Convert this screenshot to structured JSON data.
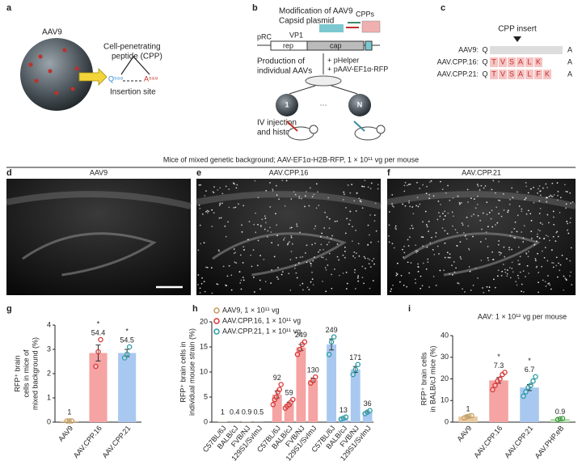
{
  "figure": {
    "panel_a": {
      "label": "a",
      "virus": "AAV9",
      "cpp": [
        "Cell-penetrating",
        "peptide (CPP)"
      ],
      "q": "Q⁵⁸⁸",
      "a": "A⁵⁸⁹",
      "site": "Insertion site"
    },
    "panel_b": {
      "label": "b",
      "title": [
        "Modification of AAV9",
        "Capsid plasmid"
      ],
      "cpps": "CPPs",
      "prc": "pRC",
      "vp1": "VP1",
      "rep": "rep",
      "cap": "cap",
      "helper": "+ pHelper",
      "transfer": "+ pAAV-EF1α-RFP",
      "production": [
        "Production of",
        "individual AAVs"
      ],
      "first": "1",
      "dots": "···",
      "last": "N",
      "injection": [
        "IV injection",
        "and histology"
      ]
    },
    "panel_c": {
      "label": "c",
      "insert": "CPP insert",
      "rows": [
        {
          "name": "AAV9:",
          "seq": [
            "Q",
            "A"
          ]
        },
        {
          "name": "AAV.CPP.16:",
          "seq": [
            "Q",
            "T",
            "V",
            "S",
            "A",
            "L",
            "K",
            "A"
          ]
        },
        {
          "name": "AAV.CPP.21:",
          "seq": [
            "Q",
            "T",
            "V",
            "S",
            "A",
            "L",
            "F",
            "K",
            "A"
          ]
        }
      ]
    },
    "header": "Mice of mixed genetic background; AAV-EF1α-H2B-RFP, 1 × 10¹¹ vg per mouse",
    "images": [
      {
        "label": "d",
        "title": "AAV9"
      },
      {
        "label": "e",
        "title": "AAV.CPP.16"
      },
      {
        "label": "f",
        "title": "AAV.CPP.21"
      }
    ]
  },
  "chart_data": [
    {
      "type": "bar",
      "panel_label": "g",
      "ylabel": [
        "RFP⁺ brain",
        "cells in mice of",
        "mixed background (%)"
      ],
      "categories": [
        "AAV9",
        "AAV.CPP.16",
        "AAV.CPP.21"
      ],
      "values": [
        0.05,
        2.85,
        2.85
      ],
      "errors": [
        0.01,
        0.33,
        0.15
      ],
      "points": [
        [
          0.05,
          0.05,
          0.05
        ],
        [
          2.3,
          2.9,
          3.4
        ],
        [
          2.65,
          2.8,
          3.1
        ]
      ],
      "colors": [
        "#e8c9a0",
        "#f5a3a3",
        "#a8c8f0"
      ],
      "point_colors": [
        "#c49a5a",
        "#d93636",
        "#2a9aa5"
      ],
      "annotations": [
        1,
        54.4,
        54.5
      ],
      "significance": [
        null,
        "*",
        "*"
      ],
      "ylim": [
        0,
        4
      ],
      "yticks": [
        0,
        1,
        2,
        3,
        4
      ]
    },
    {
      "type": "grouped_bar",
      "panel_label": "h",
      "ylabel": [
        "RFP⁺ brain cells in",
        "individual mouse strain (%)"
      ],
      "categories": [
        "C57BL/6J",
        "BALB/cJ",
        "FVB/NJ",
        "129S1/SvImJ"
      ],
      "series": [
        {
          "name": "AAV9, 1 × 10¹¹ vg",
          "color": "#e8c9a0",
          "point_color": "#c49a5a",
          "values": [
            0.06,
            0.02,
            0.05,
            0.03
          ],
          "annotations": [
            1,
            0.4,
            0.9,
            0.5
          ]
        },
        {
          "name": "AAV.CPP.16, 1 × 10¹¹ vg",
          "color": "#f5a3a3",
          "point_color": "#d93636",
          "values": [
            5.5,
            3.6,
            14.9,
            8.4
          ],
          "errors": [
            0.7,
            0.4,
            0.6,
            0.4
          ],
          "points": [
            [
              3.5,
              4.5,
              5,
              6,
              6.5,
              7.5
            ],
            [
              2.8,
              3.2,
              3.5,
              4,
              4.5
            ],
            [
              13.5,
              14.5,
              15.5,
              16
            ],
            [
              7.8,
              8.3,
              9
            ]
          ],
          "annotations": [
            92,
            59,
            249,
            130
          ]
        },
        {
          "name": "AAV.CPP.21, 1 × 10¹¹ vg",
          "color": "#a8c8f0",
          "point_color": "#2a9aa5",
          "values": [
            15.5,
            0.8,
            10.5,
            2
          ],
          "errors": [
            1.1,
            0.1,
            0.6,
            0.2
          ],
          "points": [
            [
              13.5,
              16,
              17
            ],
            [
              0.6,
              0.8,
              1
            ],
            [
              9.5,
              10.5,
              11.5
            ],
            [
              1.7,
              2,
              2.3
            ]
          ],
          "annotations": [
            249,
            13,
            171,
            36
          ]
        }
      ],
      "ylim": [
        0,
        20
      ],
      "yticks": [
        0,
        5,
        10,
        15,
        20
      ]
    },
    {
      "type": "bar",
      "panel_label": "i",
      "title": "AAV: 1 × 10¹² vg per mouse",
      "ylabel": [
        "RFP⁺ brain cells",
        "in BALB/cJ mice (%)"
      ],
      "categories": [
        "AAV9",
        "AAV.CPP.16",
        "AAV.CPP.21",
        "AAV.PHP.eB"
      ],
      "values": [
        2.6,
        19.3,
        16,
        1.5
      ],
      "errors": [
        0.3,
        1.3,
        1.4,
        0.2
      ],
      "points": [
        [
          2,
          2.5,
          2.8,
          3
        ],
        [
          15,
          17,
          19,
          20,
          22,
          23
        ],
        [
          12,
          14,
          16,
          17,
          19,
          21
        ],
        [
          1.2,
          1.5,
          1.7
        ]
      ],
      "colors": [
        "#e8c9a0",
        "#f5a3a3",
        "#a8c8f0",
        "#b8e0b0"
      ],
      "point_colors": [
        "#c49a5a",
        "#d93636",
        "#2a9aa5",
        "#3a9a3a"
      ],
      "annotations": [
        1,
        7.3,
        6.7,
        0.9
      ],
      "significance": [
        null,
        "*",
        "*",
        null
      ],
      "ylim": [
        0,
        40
      ],
      "yticks": [
        0,
        10,
        20,
        30,
        40
      ]
    }
  ]
}
